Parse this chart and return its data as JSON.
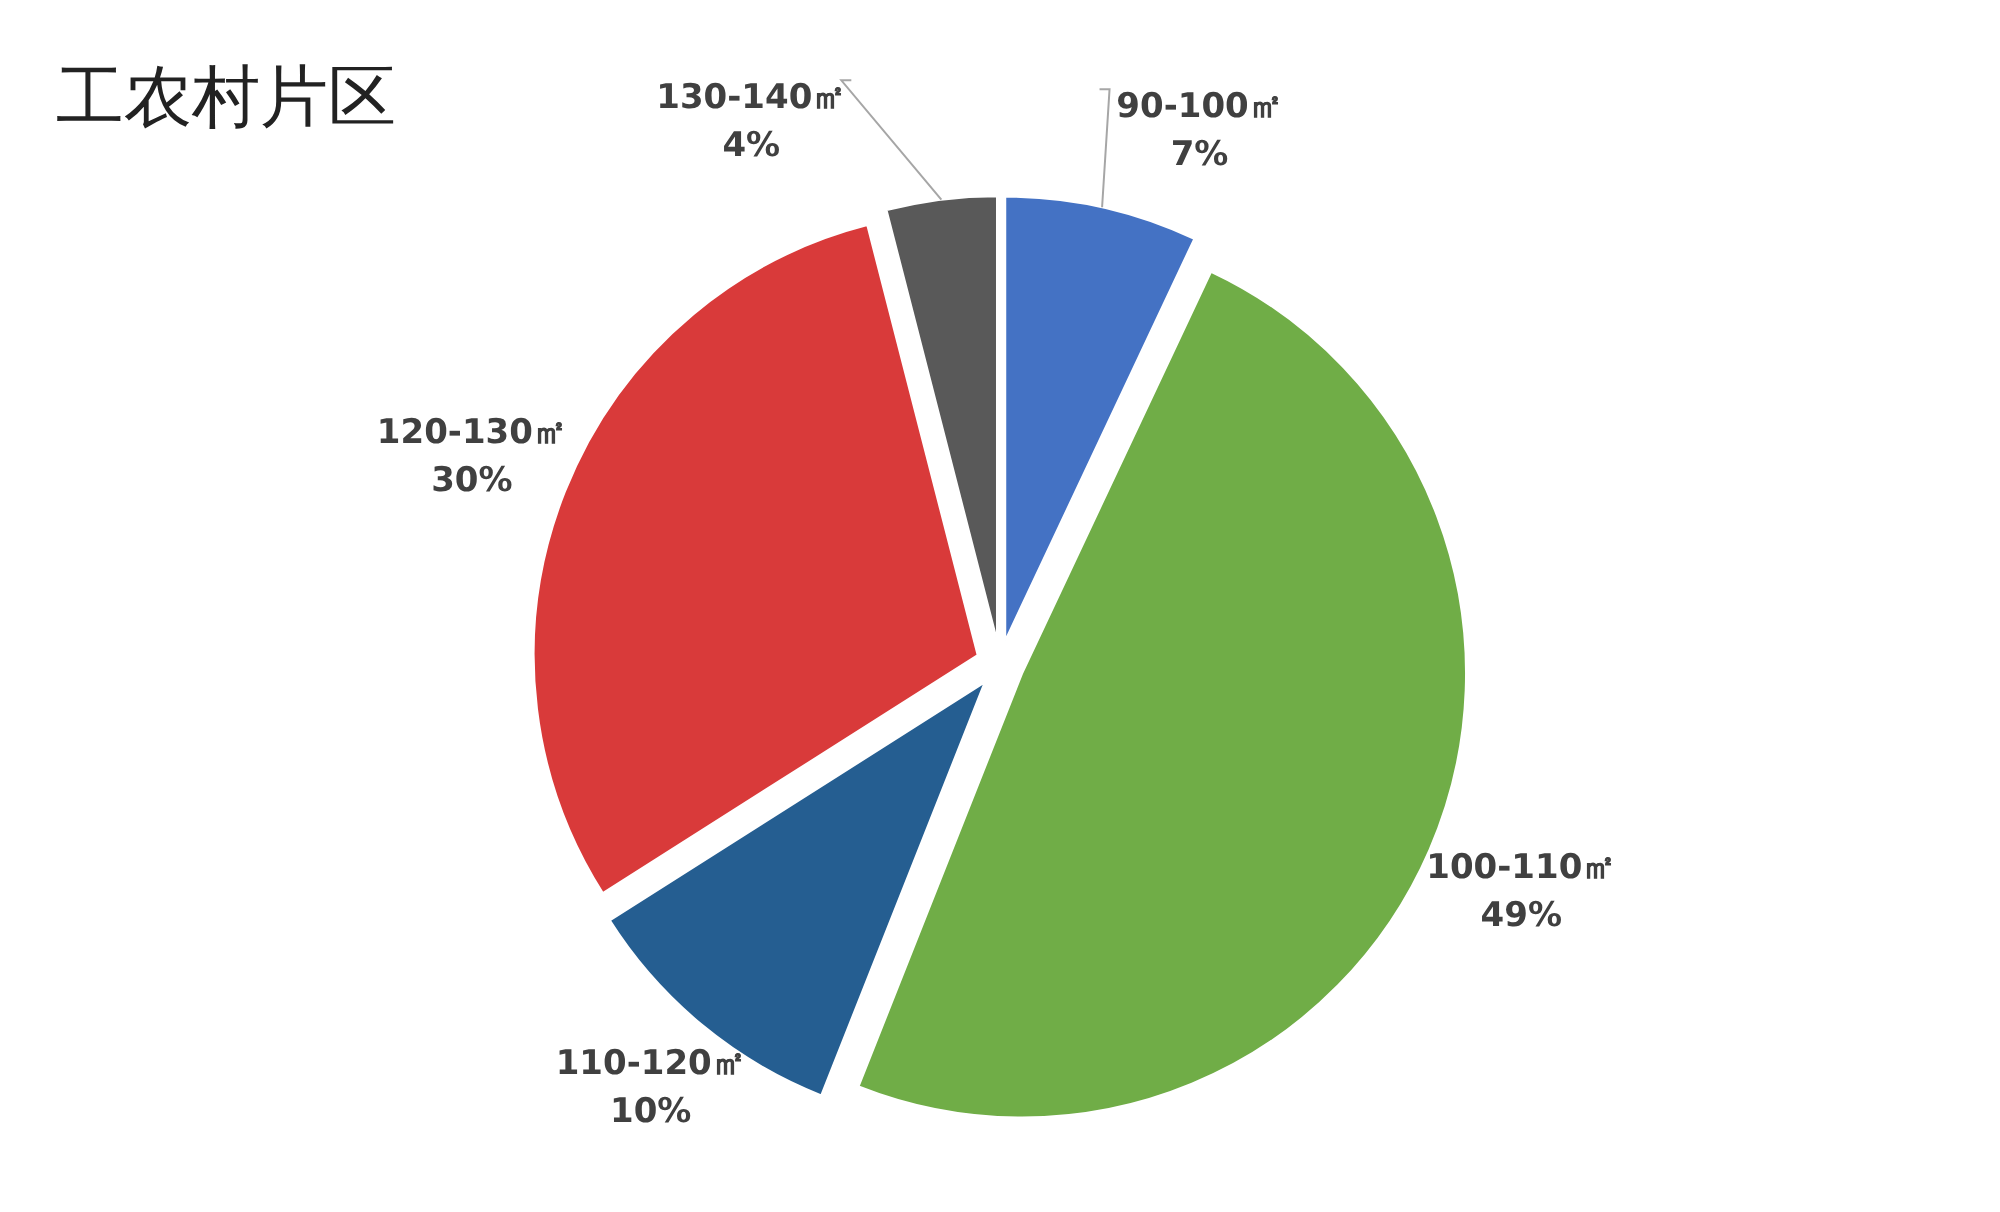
{
  "chart_data": {
    "type": "pie",
    "title": "工农村片区",
    "categories": [
      "90-100㎡",
      "100-110㎡",
      "110-120㎡",
      "120-130㎡",
      "130-140㎡"
    ],
    "values": [
      7,
      49,
      10,
      30,
      4
    ],
    "colors": [
      "#4472c4",
      "#70ad47",
      "#255e91",
      "#d93a3a",
      "#595959"
    ],
    "value_labels": [
      "7%",
      "49%",
      "10%",
      "30%",
      "4%"
    ]
  }
}
